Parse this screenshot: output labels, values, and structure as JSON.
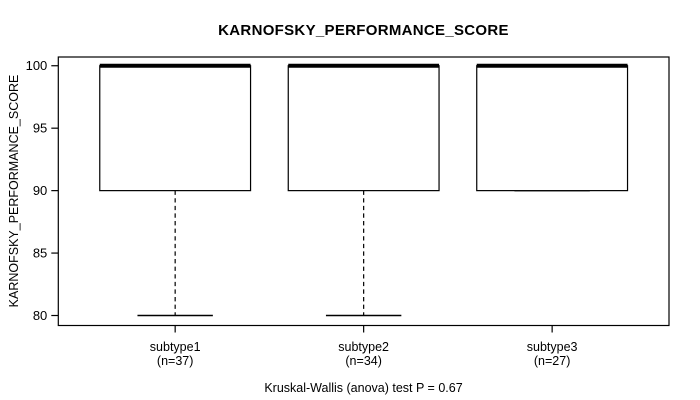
{
  "chart_data": {
    "type": "boxplot",
    "title": "KARNOFSKY_PERFORMANCE_SCORE",
    "ylabel": "KARNOFSKY_PERFORMANCE_SCORE",
    "xlabel": "",
    "annotation": "Kruskal-Wallis (anova) test P = 0.67",
    "ylim": [
      79.2,
      100.7
    ],
    "yticks": [
      80,
      85,
      90,
      95,
      100
    ],
    "grid": false,
    "legend": null,
    "colors": {
      "line": "#000000",
      "text": "#000000",
      "background": "#ffffff",
      "box_fill": "#ffffff"
    },
    "groups": [
      {
        "label": "subtype1",
        "n_label": "(n=37)",
        "n": 37,
        "lower_whisker": 80,
        "q1": 90,
        "median": 100,
        "q3": 100,
        "upper_whisker": 100
      },
      {
        "label": "subtype2",
        "n_label": "(n=34)",
        "n": 34,
        "lower_whisker": 80,
        "q1": 90,
        "median": 100,
        "q3": 100,
        "upper_whisker": 100
      },
      {
        "label": "subtype3",
        "n_label": "(n=27)",
        "n": 27,
        "lower_whisker": 90,
        "q1": 90,
        "median": 100,
        "q3": 100,
        "upper_whisker": 100
      }
    ]
  }
}
